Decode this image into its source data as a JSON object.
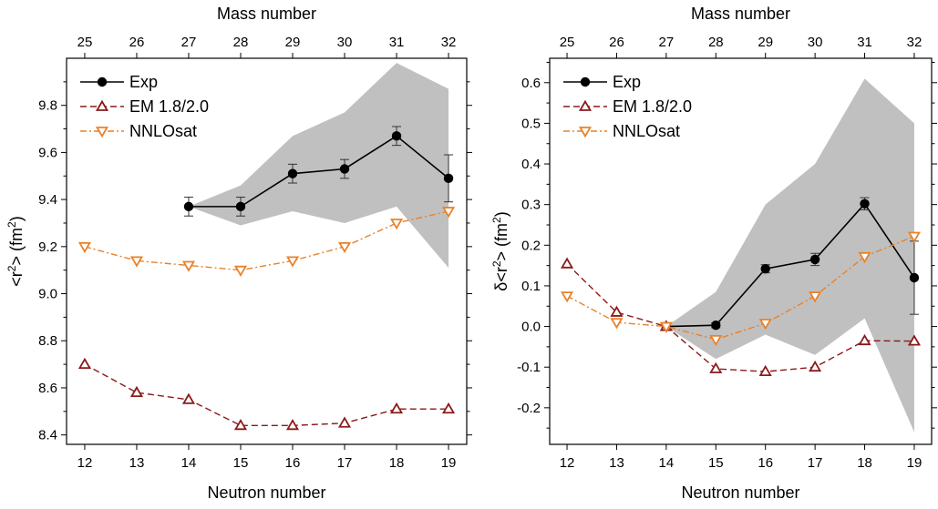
{
  "chart_data": [
    {
      "type": "line",
      "xlabel": "Neutron number",
      "x2label": "Mass number",
      "ylabel": "<r²> (fm²)",
      "ylabel_parts": {
        "pre": "<r",
        "sup1": "2",
        "mid": "> (fm",
        "sup2": "2",
        "post": ")"
      },
      "xlim": [
        11.65,
        19.35
      ],
      "ylim": [
        8.36,
        10.0
      ],
      "x_ticks": [
        12,
        13,
        14,
        15,
        16,
        17,
        18,
        19
      ],
      "x_tick_labels": [
        "12",
        "13",
        "14",
        "15",
        "16",
        "17",
        "18",
        "19"
      ],
      "x2_ticks": [
        12,
        13,
        14,
        15,
        16,
        17,
        18,
        19
      ],
      "x2_tick_labels": [
        "25",
        "26",
        "27",
        "28",
        "29",
        "30",
        "31",
        "32"
      ],
      "y_ticks": [
        8.4,
        8.6,
        8.8,
        9.0,
        9.2,
        9.4,
        9.6,
        9.8
      ],
      "y_tick_labels": [
        "8.4",
        "8.6",
        "8.8",
        "9.0",
        "9.2",
        "9.4",
        "9.6",
        "9.8"
      ],
      "y_minor_step": 0.1,
      "legend_position": "top-left",
      "band": {
        "x": [
          14,
          15,
          16,
          17,
          18,
          19
        ],
        "upper": [
          9.37,
          9.46,
          9.67,
          9.77,
          9.98,
          9.87
        ],
        "lower": [
          9.37,
          9.29,
          9.35,
          9.3,
          9.37,
          9.11
        ],
        "color": "#c0c0c0"
      },
      "series": [
        {
          "name": "Exp",
          "color": "#000000",
          "style": "solid",
          "marker": "circle",
          "x": [
            14,
            15,
            16,
            17,
            18,
            19
          ],
          "y": [
            9.37,
            9.37,
            9.51,
            9.53,
            9.67,
            9.49
          ],
          "err": [
            0.04,
            0.04,
            0.04,
            0.04,
            0.04,
            0.1
          ]
        },
        {
          "name": "EM 1.8/2.0",
          "color": "#8b1a1a",
          "style": "dashed",
          "marker": "triangle-up",
          "x": [
            12,
            13,
            14,
            15,
            16,
            17,
            18,
            19
          ],
          "y": [
            8.7,
            8.58,
            8.55,
            8.44,
            8.44,
            8.45,
            8.51,
            8.51
          ]
        },
        {
          "name": "NNLOsat",
          "color": "#e8822a",
          "style": "dashdot",
          "marker": "triangle-down",
          "x": [
            12,
            13,
            14,
            15,
            16,
            17,
            18,
            19
          ],
          "y": [
            9.2,
            9.14,
            9.12,
            9.1,
            9.14,
            9.2,
            9.3,
            9.35
          ]
        }
      ]
    },
    {
      "type": "line",
      "xlabel": "Neutron number",
      "x2label": "Mass number",
      "ylabel": "δ<r²> (fm²)",
      "ylabel_parts": {
        "pre": "δ<r",
        "sup1": "2",
        "mid": "> (fm",
        "sup2": "2",
        "post": ")"
      },
      "xlim": [
        11.65,
        19.35
      ],
      "ylim": [
        -0.29,
        0.66
      ],
      "x_ticks": [
        12,
        13,
        14,
        15,
        16,
        17,
        18,
        19
      ],
      "x_tick_labels": [
        "12",
        "13",
        "14",
        "15",
        "16",
        "17",
        "18",
        "19"
      ],
      "x2_ticks": [
        12,
        13,
        14,
        15,
        16,
        17,
        18,
        19
      ],
      "x2_tick_labels": [
        "25",
        "26",
        "27",
        "28",
        "29",
        "30",
        "31",
        "32"
      ],
      "y_ticks": [
        -0.2,
        -0.1,
        0.0,
        0.1,
        0.2,
        0.3,
        0.4,
        0.5,
        0.6
      ],
      "y_tick_labels": [
        "-0.2",
        "-0.1",
        "0.0",
        "0.1",
        "0.2",
        "0.3",
        "0.4",
        "0.5",
        "0.6"
      ],
      "y_minor_step": 0.05,
      "legend_position": "top-left",
      "band": {
        "x": [
          14,
          15,
          16,
          17,
          18,
          19
        ],
        "upper": [
          0.0,
          0.085,
          0.3,
          0.4,
          0.61,
          0.5
        ],
        "lower": [
          0.0,
          -0.08,
          -0.02,
          -0.07,
          0.02,
          -0.26
        ],
        "color": "#c0c0c0"
      },
      "series": [
        {
          "name": "Exp",
          "color": "#000000",
          "style": "solid",
          "marker": "circle",
          "x": [
            14,
            15,
            16,
            17,
            18,
            19
          ],
          "y": [
            0.0,
            0.003,
            0.142,
            0.165,
            0.302,
            0.12
          ],
          "err": [
            0.004,
            0.006,
            0.01,
            0.015,
            0.015,
            0.09
          ]
        },
        {
          "name": "EM 1.8/2.0",
          "color": "#8b1a1a",
          "style": "dashed",
          "marker": "triangle-up",
          "x": [
            12,
            13,
            14,
            15,
            16,
            17,
            18,
            19
          ],
          "y": [
            0.154,
            0.035,
            0.0,
            -0.104,
            -0.111,
            -0.1,
            -0.035,
            -0.036
          ]
        },
        {
          "name": "NNLOsat",
          "color": "#e8822a",
          "style": "dashdot",
          "marker": "triangle-down",
          "x": [
            12,
            13,
            14,
            15,
            16,
            17,
            18,
            19
          ],
          "y": [
            0.075,
            0.01,
            0.0,
            -0.032,
            0.008,
            0.075,
            0.172,
            0.222
          ]
        }
      ]
    }
  ]
}
